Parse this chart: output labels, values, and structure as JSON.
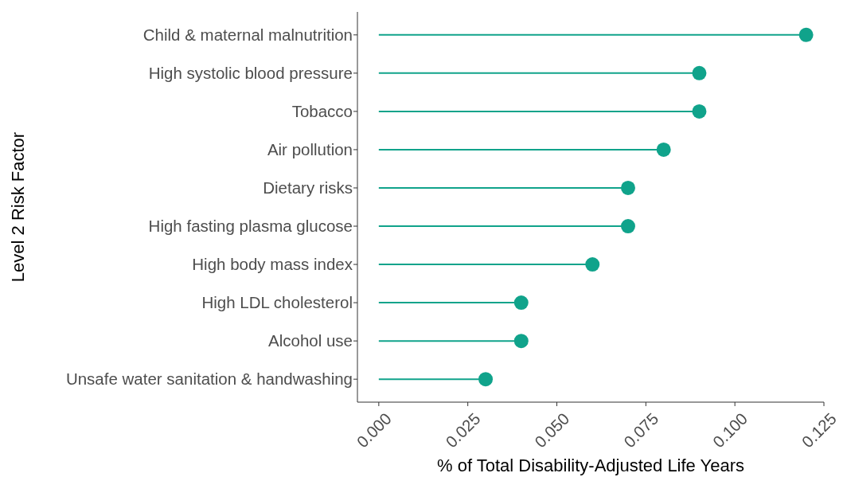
{
  "chart_data": {
    "type": "lollipop",
    "orientation": "horizontal",
    "marker": "circle",
    "color": "#10a38b",
    "categories": [
      "Child & maternal malnutrition",
      "High systolic blood pressure",
      "Tobacco",
      "Air pollution",
      "Dietary risks",
      "High fasting plasma glucose",
      "High body mass index",
      "High LDL cholesterol",
      "Alcohol use",
      "Unsafe water sanitation & handwashing"
    ],
    "values": [
      0.12,
      0.09,
      0.09,
      0.08,
      0.07,
      0.07,
      0.06,
      0.04,
      0.04,
      0.03
    ],
    "xlim": [
      -0.006,
      0.125
    ],
    "xticks": [
      {
        "value": 0,
        "label": "0.000"
      },
      {
        "value": 0.025,
        "label": "0.025"
      },
      {
        "value": 0.05,
        "label": "0.050"
      },
      {
        "value": 0.075,
        "label": "0.075"
      },
      {
        "value": 0.1,
        "label": "0.100"
      },
      {
        "value": 0.125,
        "label": "0.125"
      }
    ],
    "xlabel": "% of Total Disability-Adjusted Life Years",
    "ylabel": "Level 2 Risk Factor"
  }
}
